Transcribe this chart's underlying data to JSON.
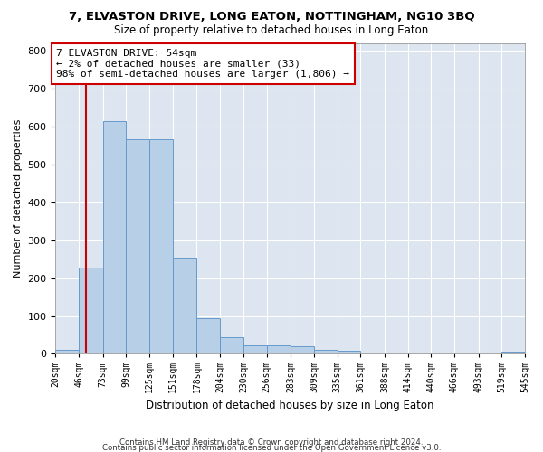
{
  "title": "7, ELVASTON DRIVE, LONG EATON, NOTTINGHAM, NG10 3BQ",
  "subtitle": "Size of property relative to detached houses in Long Eaton",
  "xlabel": "Distribution of detached houses by size in Long Eaton",
  "ylabel": "Number of detached properties",
  "bar_color": "#b8cfe8",
  "bar_edge_color": "#6699cc",
  "background_color": "#dde6f0",
  "grid_color": "#ffffff",
  "vline_color": "#cc0000",
  "vline_x": 54,
  "annotation_line1": "7 ELVASTON DRIVE: 54sqm",
  "annotation_line2": "← 2% of detached houses are smaller (33)",
  "annotation_line3": "98% of semi-detached houses are larger (1,806) →",
  "bin_edges": [
    20,
    46,
    73,
    99,
    125,
    151,
    178,
    204,
    230,
    256,
    283,
    309,
    335,
    361,
    388,
    414,
    440,
    466,
    493,
    519,
    545
  ],
  "bar_heights": [
    11,
    228,
    614,
    566,
    566,
    253,
    95,
    44,
    22,
    22,
    21,
    11,
    8,
    0,
    0,
    0,
    0,
    0,
    0,
    7
  ],
  "ylim": [
    0,
    820
  ],
  "yticks": [
    0,
    100,
    200,
    300,
    400,
    500,
    600,
    700,
    800
  ],
  "footer_line1": "Contains HM Land Registry data © Crown copyright and database right 2024.",
  "footer_line2": "Contains public sector information licensed under the Open Government Licence v3.0.",
  "tick_labels": [
    "20sqm",
    "46sqm",
    "73sqm",
    "99sqm",
    "125sqm",
    "151sqm",
    "178sqm",
    "204sqm",
    "230sqm",
    "256sqm",
    "283sqm",
    "309sqm",
    "335sqm",
    "361sqm",
    "388sqm",
    "414sqm",
    "440sqm",
    "466sqm",
    "493sqm",
    "519sqm",
    "545sqm"
  ]
}
